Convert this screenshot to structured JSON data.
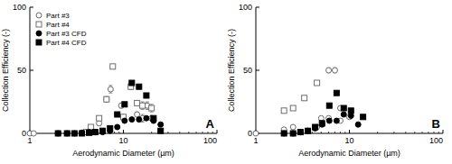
{
  "chart_data": [
    {
      "type": "scatter",
      "x_label": "Aerodynamic Diameter (µm)",
      "y_label": "Collection Efficiency (-)",
      "annotations": [
        "A"
      ],
      "log": "x",
      "xlim": [
        1,
        100
      ],
      "xticks": [
        1,
        10,
        100
      ],
      "ylim": [
        0,
        100
      ],
      "yticks": [
        0,
        50,
        100
      ],
      "legend": "top-left",
      "series": [
        {
          "name": "Part #3",
          "marker": "circle-open",
          "color": "#6e6e6e",
          "x": [
            1.0,
            1.1,
            4.5,
            5.5,
            6.6,
            7.3,
            9.5,
            12,
            14,
            16,
            18,
            20
          ],
          "values": [
            0,
            0,
            2,
            8,
            27,
            35,
            22,
            37,
            15,
            12,
            22,
            12
          ],
          "errors": [
            0,
            0,
            1,
            2,
            2,
            3,
            2,
            2,
            2,
            3,
            3,
            2
          ]
        },
        {
          "name": "Part #4",
          "marker": "square-open",
          "color": "#6e6e6e",
          "x": [
            4.0,
            4.5,
            5.5,
            6.6,
            7.7,
            10,
            12,
            14,
            16,
            20
          ],
          "values": [
            1,
            5,
            12,
            27,
            53,
            13,
            37,
            24,
            22,
            20
          ],
          "errors": [
            0,
            1,
            1,
            2,
            1,
            2,
            2,
            2,
            3,
            3
          ]
        },
        {
          "name": "Part #3 CFD",
          "marker": "circle",
          "color": "#000000",
          "x": [
            2,
            2.5,
            3,
            3.6,
            4.3,
            5,
            6,
            7.2,
            8.6,
            10.3,
            12.3,
            14.7,
            17.6,
            21,
            25
          ],
          "values": [
            0,
            0,
            0,
            0.5,
            1,
            1,
            1,
            2,
            5,
            10,
            11,
            11,
            12,
            10,
            7
          ]
        },
        {
          "name": "Part #4 CFD",
          "marker": "square",
          "color": "#000000",
          "x": [
            2,
            2.5,
            3,
            3.6,
            4.3,
            5,
            6,
            7.2,
            8.6,
            10.3,
            12.3,
            14.7,
            17.6,
            21,
            25
          ],
          "values": [
            0,
            0,
            0,
            0,
            0.5,
            1,
            2,
            4,
            15,
            23,
            40,
            37,
            30,
            12,
            2
          ]
        }
      ]
    },
    {
      "type": "scatter",
      "x_label": "Aerodynamic Diameter (µm)",
      "y_label": "Collection Efficiency (-)",
      "annotations": [
        "B"
      ],
      "log": "x",
      "xlim": [
        1,
        100
      ],
      "xticks": [
        1,
        10,
        100
      ],
      "ylim": [
        0,
        100
      ],
      "yticks": [
        0,
        50,
        100
      ],
      "series": [
        {
          "marker": "circle-open",
          "color": "#6e6e6e",
          "x": [
            1.0,
            2.0,
            2.5,
            4.5,
            5.0,
            6.0,
            6.0,
            7.0,
            8.0,
            8.0,
            10.0
          ],
          "values": [
            0,
            3,
            5,
            5,
            12,
            50,
            12,
            50,
            20,
            10,
            13
          ],
          "errors": [
            0,
            1,
            1,
            1,
            1,
            2,
            1,
            2,
            1,
            1,
            1
          ]
        },
        {
          "marker": "square-open",
          "color": "#6e6e6e",
          "x": [
            2.0,
            2.5,
            3.3,
            4.5
          ],
          "values": [
            18,
            20,
            28,
            40
          ],
          "errors": [
            1,
            1,
            1,
            1
          ]
        },
        {
          "marker": "circle",
          "color": "#000000",
          "x": [
            2,
            2.5,
            3,
            3.6,
            4.3,
            5.1,
            6.1,
            7.3,
            8.7,
            10.4,
            12.4
          ],
          "values": [
            0,
            0,
            1,
            2,
            4,
            7,
            10,
            10,
            15,
            14,
            7
          ]
        },
        {
          "marker": "square",
          "color": "#000000",
          "x": [
            2,
            2.5,
            3,
            3.6,
            4.3,
            5.1,
            6.1,
            7.3,
            8.7,
            10.4,
            14
          ],
          "values": [
            0,
            0,
            1,
            2,
            5,
            8,
            22,
            32,
            20,
            18,
            13
          ]
        }
      ]
    }
  ]
}
